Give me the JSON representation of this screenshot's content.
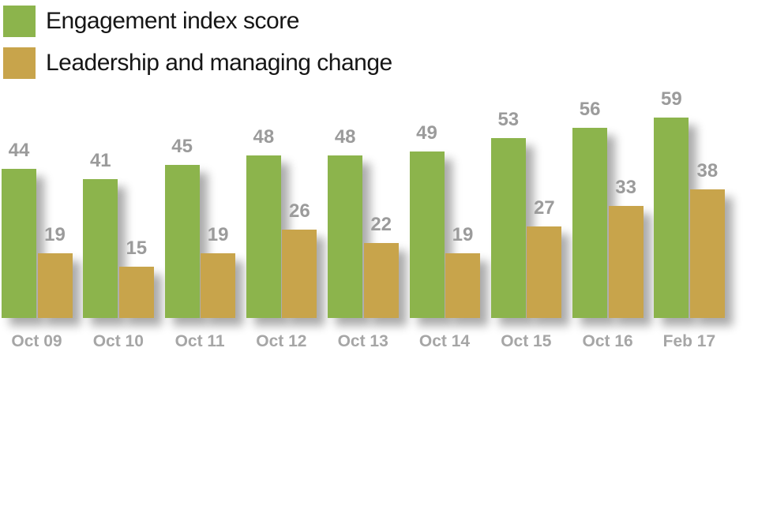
{
  "legend": {
    "items": [
      {
        "label": "Engagement index score",
        "color": "#8cb44c"
      },
      {
        "label": "Leadership and managing change",
        "color": "#c8a44b"
      }
    ]
  },
  "chart_data": {
    "type": "bar",
    "title": "",
    "xlabel": "",
    "ylabel": "",
    "categories": [
      "Oct 09",
      "Oct 10",
      "Oct 11",
      "Oct 12",
      "Oct 13",
      "Oct 14",
      "Oct 15",
      "Oct 16",
      "Feb 17"
    ],
    "series": [
      {
        "name": "Engagement index score",
        "color": "#8cb44c",
        "values": [
          44,
          41,
          45,
          48,
          48,
          49,
          53,
          56,
          59
        ]
      },
      {
        "name": "Leadership and managing change",
        "color": "#c8a44b",
        "values": [
          19,
          15,
          19,
          26,
          22,
          19,
          27,
          33,
          38
        ]
      }
    ],
    "value_labels": true,
    "ylim": [
      0,
      62
    ],
    "grid": false,
    "axes_visible": false,
    "legend_position": "top-left"
  },
  "colors": {
    "background": "#ffffff",
    "value_label_text": "#9b9b9b",
    "category_label_text": "#a6a6a6",
    "legend_text": "#161616"
  }
}
